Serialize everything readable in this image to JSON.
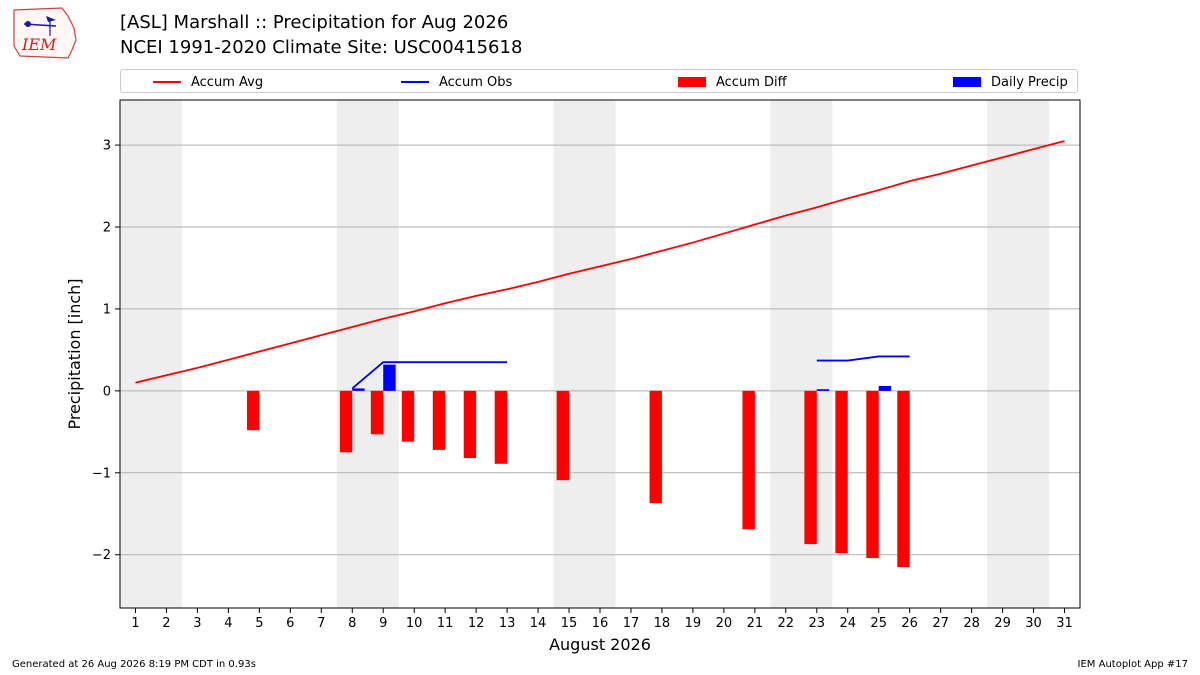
{
  "header": {
    "logo_text": "IEM",
    "title_line1": "[ASL] Marshall :: Precipitation for Aug 2026",
    "title_line2": "NCEI 1991-2020 Climate Site: USC00415618"
  },
  "legend": {
    "items": [
      {
        "label": "Accum Avg",
        "kind": "line",
        "color": "#ff0000"
      },
      {
        "label": "Accum Obs",
        "kind": "line",
        "color": "#0000ff"
      },
      {
        "label": "Accum Diff",
        "kind": "box",
        "color": "#ff0000"
      },
      {
        "label": "Daily Precip",
        "kind": "box",
        "color": "#0000ff"
      }
    ]
  },
  "footer": {
    "left": "Generated at 26 Aug 2026 8:19 PM CDT in 0.93s",
    "right": "IEM Autoplot App #17"
  },
  "chart_data": {
    "type": "bar",
    "xlabel": "August 2026",
    "ylabel": "Precipitation [inch]",
    "xlim": [
      0.5,
      31.5
    ],
    "ylim": [
      -2.65,
      3.55
    ],
    "yticks": [
      -2,
      -1,
      0,
      1,
      2,
      3
    ],
    "ytick_labels": [
      "−2",
      "−1",
      "0",
      "1",
      "2",
      "3"
    ],
    "xticks": [
      1,
      2,
      3,
      4,
      5,
      6,
      7,
      8,
      9,
      10,
      11,
      12,
      13,
      14,
      15,
      16,
      17,
      18,
      19,
      20,
      21,
      22,
      23,
      24,
      25,
      26,
      27,
      28,
      29,
      30,
      31
    ],
    "grid": "horizontal",
    "legend_position": "top",
    "weekend_shading": [
      [
        1,
        2
      ],
      [
        8,
        9
      ],
      [
        15,
        16
      ],
      [
        22,
        23
      ],
      [
        29,
        30
      ]
    ],
    "accum_avg": {
      "name": "Accum Avg",
      "days": [
        1,
        2,
        3,
        4,
        5,
        6,
        7,
        8,
        9,
        10,
        11,
        12,
        13,
        14,
        15,
        16,
        17,
        18,
        19,
        20,
        21,
        22,
        23,
        24,
        25,
        26,
        27,
        28,
        29,
        30,
        31
      ],
      "values": [
        0.1,
        0.19,
        0.28,
        0.38,
        0.48,
        0.58,
        0.68,
        0.78,
        0.88,
        0.97,
        1.07,
        1.16,
        1.24,
        1.33,
        1.43,
        1.52,
        1.61,
        1.71,
        1.81,
        1.92,
        2.03,
        2.14,
        2.24,
        2.35,
        2.45,
        2.56,
        2.65,
        2.75,
        2.85,
        2.95,
        3.05
      ]
    },
    "accum_obs": {
      "name": "Accum Obs",
      "segments": [
        {
          "days": [
            8,
            9,
            10,
            11,
            12,
            13
          ],
          "values": [
            0.03,
            0.35,
            0.35,
            0.35,
            0.35,
            0.35
          ]
        },
        {
          "days": [
            23,
            24,
            25,
            26
          ],
          "values": [
            0.37,
            0.37,
            0.42,
            0.42
          ]
        }
      ]
    },
    "accum_diff": {
      "name": "Accum Diff",
      "days": [
        5,
        8,
        9,
        10,
        11,
        12,
        13,
        15,
        18,
        21,
        23,
        24,
        25,
        26
      ],
      "values": [
        -0.48,
        -0.75,
        -0.53,
        -0.62,
        -0.72,
        -0.82,
        -0.89,
        -1.09,
        -1.37,
        -1.69,
        -1.87,
        -1.98,
        -2.04,
        -2.15
      ]
    },
    "daily_precip": {
      "name": "Daily Precip",
      "days": [
        8,
        9,
        23,
        25
      ],
      "values": [
        0.03,
        0.32,
        0.02,
        0.06
      ]
    }
  }
}
